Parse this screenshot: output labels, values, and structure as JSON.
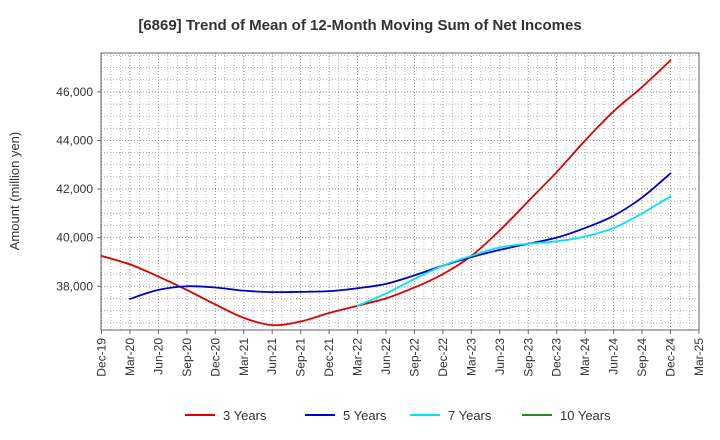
{
  "chart_data": {
    "type": "line",
    "title": "[6869]  Trend of Mean of 12-Month Moving Sum of Net Incomes",
    "xlabel": "",
    "ylabel": "Amount (million yen)",
    "ylim": [
      36200,
      47600
    ],
    "y_ticks": [
      38000,
      40000,
      42000,
      44000,
      46000
    ],
    "y_tick_labels": [
      "38,000",
      "40,000",
      "42,000",
      "44,000",
      "46,000"
    ],
    "x_ticks": [
      "Dec-19",
      "Mar-20",
      "Jun-20",
      "Sep-20",
      "Dec-20",
      "Mar-21",
      "Jun-21",
      "Sep-21",
      "Dec-21",
      "Mar-22",
      "Jun-22",
      "Sep-22",
      "Dec-22",
      "Mar-23",
      "Jun-23",
      "Sep-23",
      "Dec-23",
      "Mar-24",
      "Jun-24",
      "Sep-24",
      "Dec-24",
      "Mar-25"
    ],
    "grid": true,
    "legend_position": "bottom",
    "series": [
      {
        "name": "3 Years",
        "color": "#dd0000",
        "points": [
          [
            "Dec-19",
            39250
          ],
          [
            "Mar-20",
            38900
          ],
          [
            "Jun-20",
            38400
          ],
          [
            "Sep-20",
            37850
          ],
          [
            "Dec-20",
            37250
          ],
          [
            "Mar-21",
            36700
          ],
          [
            "Jun-21",
            36400
          ],
          [
            "Sep-21",
            36550
          ],
          [
            "Dec-21",
            36900
          ],
          [
            "Mar-22",
            37200
          ],
          [
            "Jun-22",
            37500
          ],
          [
            "Sep-22",
            37950
          ],
          [
            "Dec-22",
            38500
          ],
          [
            "Mar-23",
            39250
          ],
          [
            "Jun-23",
            40300
          ],
          [
            "Sep-23",
            41500
          ],
          [
            "Dec-23",
            42700
          ],
          [
            "Mar-24",
            44000
          ],
          [
            "Jun-24",
            45200
          ],
          [
            "Sep-24",
            46200
          ],
          [
            "Dec-24",
            47300
          ]
        ]
      },
      {
        "name": "5 Years",
        "color": "#0000cc",
        "points": [
          [
            "Mar-20",
            37480
          ],
          [
            "Jun-20",
            37850
          ],
          [
            "Sep-20",
            38000
          ],
          [
            "Dec-20",
            37950
          ],
          [
            "Mar-21",
            37820
          ],
          [
            "Jun-21",
            37760
          ],
          [
            "Sep-21",
            37770
          ],
          [
            "Dec-21",
            37800
          ],
          [
            "Mar-22",
            37920
          ],
          [
            "Jun-22",
            38100
          ],
          [
            "Sep-22",
            38450
          ],
          [
            "Dec-22",
            38850
          ],
          [
            "Mar-23",
            39200
          ],
          [
            "Jun-23",
            39500
          ],
          [
            "Sep-23",
            39750
          ],
          [
            "Dec-23",
            40000
          ],
          [
            "Mar-24",
            40400
          ],
          [
            "Jun-24",
            40900
          ],
          [
            "Sep-24",
            41650
          ],
          [
            "Dec-24",
            42650
          ]
        ]
      },
      {
        "name": "7 Years",
        "color": "#00e5ee",
        "points": [
          [
            "Mar-22",
            37200
          ],
          [
            "Jun-22",
            37700
          ],
          [
            "Sep-22",
            38300
          ],
          [
            "Dec-22",
            38850
          ],
          [
            "Mar-23",
            39250
          ],
          [
            "Jun-23",
            39600
          ],
          [
            "Sep-23",
            39750
          ],
          [
            "Dec-23",
            39850
          ],
          [
            "Mar-24",
            40050
          ],
          [
            "Jun-24",
            40400
          ],
          [
            "Sep-24",
            41000
          ],
          [
            "Dec-24",
            41700
          ]
        ]
      },
      {
        "name": "10 Years",
        "color": "#228b22",
        "points": []
      }
    ]
  }
}
